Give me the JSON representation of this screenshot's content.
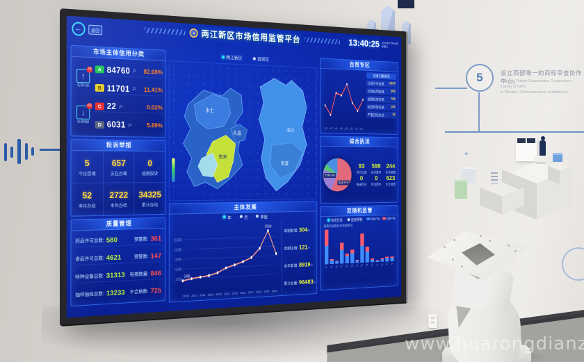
{
  "watermark": "www.huarongdianzi.com",
  "wall": {
    "milestone_number": "5",
    "milestone_text_zh": "设立西部唯一的商标审查协作中心。",
    "milestone_text_en1": "The only Patent Examination Cooperation Center of SIPO",
    "milestone_text_en2": "in Western China has been established."
  },
  "colors": {
    "accent_blue": "#2f66e8",
    "grade_a": "#17c24d",
    "grade_b": "#e6cf1f",
    "grade_c": "#e8252a",
    "grade_d": "#55617a",
    "number_yellow": "#ffd83c",
    "number_green": "#b8f23c",
    "alert_red": "#ff4d4d",
    "line_pink": "#ff9d8a",
    "bar_blue": "#3f8cff",
    "bar_red": "#ff5a6e"
  },
  "dashboard": {
    "back_label": "返回",
    "title": "两江新区市场信用监管平台",
    "clock": {
      "time": "13:40:25",
      "date": "2020年07月08日",
      "weekday": "星期三"
    },
    "map_tabs": {
      "tab1": "两江新区",
      "tab2": "自贸区"
    },
    "map_labels": {
      "l1": "水土",
      "l2": "礼嘉",
      "l3": "悦来",
      "l4": "龙兴",
      "l5": "鱼复"
    },
    "credit": {
      "title": "市场主体信用分类",
      "up_label": "信用升级",
      "up_badge": "78",
      "down_label": "信用降级",
      "down_badge": "63",
      "rows": [
        {
          "grade": "A",
          "count": "84760",
          "unit": "户",
          "pct": "82.68%"
        },
        {
          "grade": "B",
          "count": "11701",
          "unit": "户",
          "pct": "11.41%"
        },
        {
          "grade": "C",
          "count": "22",
          "unit": "户",
          "pct": "0.02%"
        },
        {
          "grade": "D",
          "count": "6031",
          "unit": "户",
          "pct": "5.89%"
        }
      ]
    },
    "complaints": {
      "title": "投诉举报",
      "cells": [
        {
          "value": "5",
          "unit": "件",
          "label": "今日受理"
        },
        {
          "value": "657",
          "unit": "件",
          "label": "正在办理"
        },
        {
          "value": "0",
          "unit": "件",
          "label": "逾期投诉"
        },
        {
          "value": "52",
          "unit": "件",
          "label": "本月办结"
        },
        {
          "value": "2722",
          "unit": "件",
          "label": "本年办结"
        },
        {
          "value": "34325",
          "unit": "件",
          "label": "累计办结"
        }
      ]
    },
    "quality": {
      "title": "质量管理",
      "rows": [
        {
          "label": "药品许可总数:",
          "value": "580",
          "label2": "预警数:",
          "value2": "361"
        },
        {
          "label": "食品许可总数:",
          "value": "4621",
          "label2": "预警数:",
          "value2": "147"
        },
        {
          "label": "特种设备总数:",
          "value": "31313",
          "label2": "电梯数量:",
          "value2": "846"
        },
        {
          "label": "抽样抽检总数:",
          "value": "13233",
          "label2": "不合格数:",
          "value2": "725"
        }
      ]
    },
    "development": {
      "title": "主体发展",
      "legend1": "年",
      "legend2": "月",
      "legend3": "季度",
      "stats": [
        {
          "label": "本期新增:",
          "value": "304",
          "unit": "户"
        },
        {
          "label": "本期注销:",
          "value": "121",
          "unit": "户"
        },
        {
          "label": "本年新增:",
          "value": "8919",
          "unit": "户"
        },
        {
          "label": "累计总量:",
          "value": "96483",
          "unit": "户"
        }
      ]
    },
    "ftz": {
      "title": "自贸专区",
      "list_header": "信息归集情况",
      "rows": [
        {
          "label": "行政许可信息",
          "value": "1024"
        },
        {
          "label": "行政处罚信息",
          "value": "368"
        },
        {
          "label": "抽查检查信息",
          "value": "756"
        },
        {
          "label": "经营异常名录",
          "value": "102"
        },
        {
          "label": "严重违法失信",
          "value": "18"
        }
      ]
    },
    "enforcement": {
      "title": "综合执法",
      "pie_label1": "企业 57%",
      "pie_label2": "个体 23%",
      "cells": [
        {
          "value": "93",
          "unit": "件",
          "label": "本月立案"
        },
        {
          "value": "598",
          "unit": "件",
          "label": "在办案件"
        },
        {
          "value": "244",
          "unit": "件",
          "label": "本月结案"
        },
        {
          "value": "0",
          "unit": "件",
          "label": "移送司法"
        },
        {
          "value": "0",
          "unit": "件",
          "label": "听证案件"
        },
        {
          "value": "623",
          "unit": "件",
          "label": "本年结案"
        }
      ]
    },
    "random": {
      "title": "双随机监管",
      "option1": "检查任务",
      "option2": "监管预警",
      "caption": "双随机抽查任务完成情况",
      "legend_blue": "检查户数",
      "legend_red": "问题户数"
    }
  },
  "chart_data": [
    {
      "id": "development",
      "type": "line",
      "title": "主体发展",
      "x": [
        "2009",
        "2010",
        "2011",
        "2012",
        "2013",
        "2014",
        "2015",
        "2016",
        "2017",
        "2018",
        "2019",
        "2020"
      ],
      "values": [
        2408,
        2950,
        3300,
        3650,
        4400,
        5800,
        6600,
        7500,
        8700,
        11500,
        17034,
        9600
      ],
      "ylim": [
        0,
        18000
      ],
      "yticks": [
        3000,
        6000,
        9000,
        12000,
        15000
      ],
      "legend": [
        "年",
        "月",
        "季度"
      ],
      "annotations": [
        "2408",
        "17034"
      ]
    },
    {
      "id": "ftz",
      "type": "line",
      "title": "自贸专区",
      "x": [
        "1月",
        "2月",
        "3月",
        "4月",
        "5月",
        "6月",
        "7月",
        "8月"
      ],
      "values": [
        30,
        14,
        52,
        48,
        68,
        36,
        22,
        42
      ],
      "ylim": [
        0,
        80
      ]
    },
    {
      "id": "enforcement_pie",
      "type": "pie",
      "title": "综合执法",
      "slices": [
        {
          "label": "企业",
          "pct": 57,
          "color": "#e2697c"
        },
        {
          "label": "个体",
          "pct": 23,
          "color": "#9b7fd4"
        },
        {
          "label": "农专",
          "pct": 6,
          "color": "#58c472"
        },
        {
          "label": "其他",
          "pct": 14,
          "color": "#4a90e2"
        }
      ]
    },
    {
      "id": "random_bars",
      "type": "bar",
      "title": "双随机监管",
      "categories": [
        "01",
        "02",
        "03",
        "04",
        "05",
        "06",
        "07",
        "08",
        "09",
        "10",
        "11",
        "12",
        "13",
        "14"
      ],
      "series": [
        {
          "name": "检查户数",
          "color": "#3f8cff",
          "values": [
            30,
            6,
            4,
            22,
            12,
            16,
            4,
            28,
            18,
            4,
            2,
            4,
            6,
            6
          ]
        },
        {
          "name": "问题户数",
          "color": "#ff5a6e",
          "values": [
            26,
            2,
            1,
            12,
            4,
            6,
            1,
            20,
            8,
            2,
            1,
            2,
            2,
            2
          ]
        }
      ]
    }
  ]
}
